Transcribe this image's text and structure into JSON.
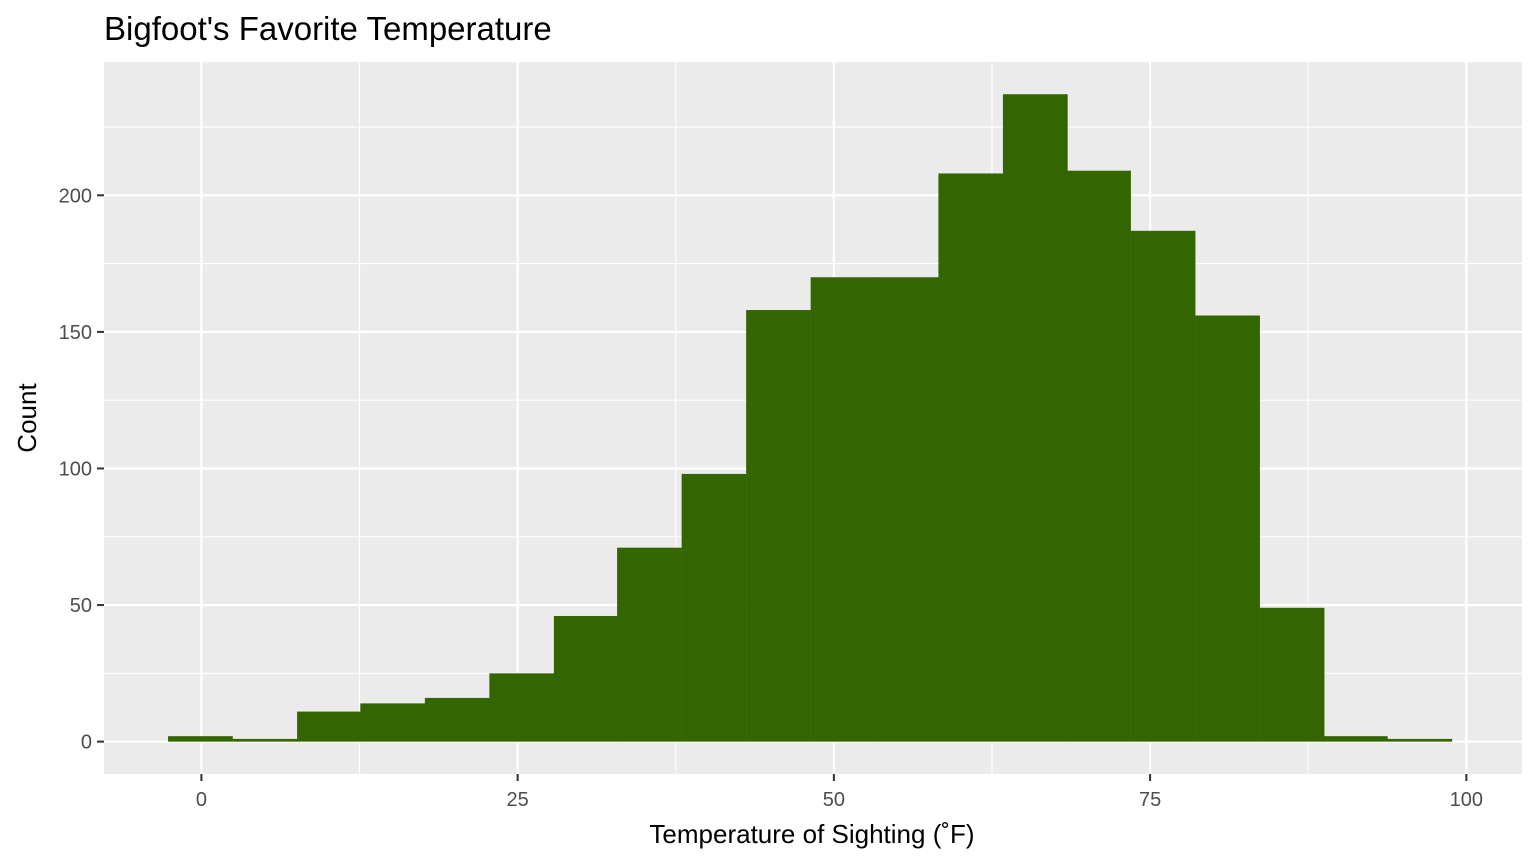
{
  "chart_data": {
    "type": "bar",
    "title": "Bigfoot's Favorite Temperature",
    "xlabel": "Temperature of Sighting (˚F)",
    "ylabel": "Count",
    "bar_color": "#336600",
    "panel_color": "#EBEBEB",
    "grid_color": "#FFFFFF",
    "grid": true,
    "xlim": [
      -7.7,
      104.4
    ],
    "ylim": [
      -11.85,
      248.8
    ],
    "x_ticks": [
      0,
      25,
      50,
      75,
      100
    ],
    "y_ticks": [
      0,
      50,
      100,
      150,
      200
    ],
    "bin_width": 5.07,
    "bin_centers": [
      -0.1,
      5.0,
      10.1,
      15.1,
      20.2,
      25.3,
      30.4,
      35.4,
      40.5,
      45.6,
      50.7,
      55.7,
      60.8,
      65.9,
      70.9,
      76.0,
      81.1,
      86.2,
      91.2,
      96.3
    ],
    "values": [
      2,
      1,
      11,
      14,
      16,
      25,
      46,
      71,
      98,
      158,
      170,
      170,
      208,
      237,
      209,
      187,
      156,
      49,
      2,
      1
    ]
  }
}
